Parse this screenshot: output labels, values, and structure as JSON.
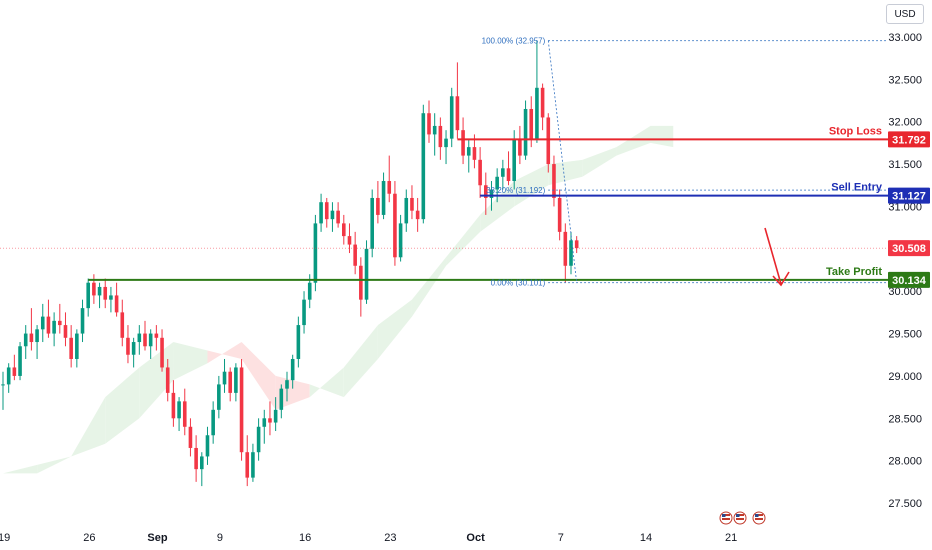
{
  "currency": "USD",
  "chart_data": {
    "type": "candlestick",
    "y_ticks": [
      "33.000",
      "32.500",
      "32.000",
      "31.500",
      "31.000",
      "30.500",
      "30.000",
      "29.500",
      "29.000",
      "28.500",
      "28.000",
      "27.500"
    ],
    "y_tick_values": [
      33.0,
      32.5,
      32.0,
      31.5,
      31.0,
      30.5,
      30.0,
      29.5,
      29.0,
      28.5,
      28.0,
      27.5
    ],
    "ylim": [
      27.3,
      33.2
    ],
    "x_ticks": [
      {
        "label": "19",
        "pos": 0.2,
        "bold": false
      },
      {
        "label": "26",
        "pos": 15.2,
        "bold": false
      },
      {
        "label": "Sep",
        "pos": 27.2,
        "bold": true
      },
      {
        "label": "9",
        "pos": 38.2,
        "bold": false
      },
      {
        "label": "16",
        "pos": 53.2,
        "bold": false
      },
      {
        "label": "23",
        "pos": 68.2,
        "bold": false
      },
      {
        "label": "Oct",
        "pos": 83.2,
        "bold": true
      },
      {
        "label": "7",
        "pos": 98.2,
        "bold": false
      },
      {
        "label": "14",
        "pos": 113.2,
        "bold": false
      },
      {
        "label": "21",
        "pos": 128.2,
        "bold": false
      }
    ],
    "candles": [
      [
        28.9,
        29.05,
        28.6,
        28.9
      ],
      [
        28.9,
        29.15,
        28.8,
        29.1
      ],
      [
        29.1,
        29.25,
        28.95,
        29.0
      ],
      [
        29.0,
        29.4,
        28.95,
        29.35
      ],
      [
        29.35,
        29.6,
        29.2,
        29.5
      ],
      [
        29.5,
        29.8,
        29.3,
        29.4
      ],
      [
        29.4,
        29.6,
        29.2,
        29.55
      ],
      [
        29.55,
        29.85,
        29.4,
        29.7
      ],
      [
        29.7,
        29.9,
        29.45,
        29.5
      ],
      [
        29.5,
        29.75,
        29.35,
        29.65
      ],
      [
        29.65,
        29.85,
        29.5,
        29.6
      ],
      [
        29.6,
        29.75,
        29.35,
        29.45
      ],
      [
        29.45,
        29.6,
        29.1,
        29.2
      ],
      [
        29.2,
        29.55,
        29.1,
        29.5
      ],
      [
        29.5,
        29.9,
        29.4,
        29.8
      ],
      [
        29.8,
        30.15,
        29.7,
        30.1
      ],
      [
        30.1,
        30.2,
        29.85,
        29.95
      ],
      [
        29.95,
        30.1,
        29.8,
        30.05
      ],
      [
        30.05,
        30.15,
        29.8,
        29.9
      ],
      [
        29.9,
        30.05,
        29.75,
        29.95
      ],
      [
        29.95,
        30.1,
        29.7,
        29.75
      ],
      [
        29.75,
        29.9,
        29.35,
        29.45
      ],
      [
        29.45,
        29.6,
        29.15,
        29.25
      ],
      [
        29.25,
        29.45,
        29.1,
        29.4
      ],
      [
        29.4,
        29.6,
        29.25,
        29.5
      ],
      [
        29.5,
        29.65,
        29.3,
        29.35
      ],
      [
        29.35,
        29.55,
        29.2,
        29.5
      ],
      [
        29.5,
        29.6,
        29.3,
        29.45
      ],
      [
        29.45,
        29.55,
        29.05,
        29.1
      ],
      [
        29.1,
        29.2,
        28.7,
        28.8
      ],
      [
        28.8,
        28.95,
        28.4,
        28.5
      ],
      [
        28.5,
        28.75,
        28.35,
        28.7
      ],
      [
        28.7,
        28.85,
        28.3,
        28.4
      ],
      [
        28.4,
        28.5,
        28.05,
        28.15
      ],
      [
        28.15,
        28.3,
        27.75,
        27.9
      ],
      [
        27.9,
        28.1,
        27.7,
        28.05
      ],
      [
        28.05,
        28.4,
        27.95,
        28.3
      ],
      [
        28.3,
        28.7,
        28.2,
        28.6
      ],
      [
        28.6,
        29.0,
        28.5,
        28.9
      ],
      [
        28.9,
        29.2,
        28.8,
        29.05
      ],
      [
        29.05,
        29.1,
        28.7,
        28.8
      ],
      [
        28.8,
        29.15,
        28.7,
        29.1
      ],
      [
        29.1,
        29.2,
        28.0,
        28.1
      ],
      [
        28.1,
        28.3,
        27.7,
        27.8
      ],
      [
        27.8,
        28.2,
        27.75,
        28.1
      ],
      [
        28.1,
        28.5,
        28.0,
        28.4
      ],
      [
        28.4,
        28.6,
        28.2,
        28.5
      ],
      [
        28.5,
        28.7,
        28.3,
        28.45
      ],
      [
        28.45,
        28.75,
        28.35,
        28.6
      ],
      [
        28.6,
        28.9,
        28.5,
        28.85
      ],
      [
        28.85,
        29.05,
        28.7,
        28.95
      ],
      [
        28.95,
        29.25,
        28.85,
        29.2
      ],
      [
        29.2,
        29.7,
        29.1,
        29.6
      ],
      [
        29.6,
        30.0,
        29.5,
        29.9
      ],
      [
        29.9,
        30.2,
        29.8,
        30.1
      ],
      [
        30.1,
        30.9,
        30.0,
        30.8
      ],
      [
        30.8,
        31.15,
        30.7,
        31.05
      ],
      [
        31.05,
        31.1,
        30.75,
        30.85
      ],
      [
        30.85,
        31.05,
        30.7,
        30.95
      ],
      [
        30.95,
        31.05,
        30.75,
        30.8
      ],
      [
        30.8,
        30.9,
        30.55,
        30.65
      ],
      [
        30.65,
        30.8,
        30.45,
        30.55
      ],
      [
        30.55,
        30.7,
        30.2,
        30.3
      ],
      [
        30.3,
        30.4,
        29.7,
        29.9
      ],
      [
        29.9,
        30.6,
        29.85,
        30.5
      ],
      [
        30.5,
        31.2,
        30.4,
        31.1
      ],
      [
        31.1,
        31.3,
        30.8,
        30.9
      ],
      [
        30.9,
        31.4,
        30.85,
        31.3
      ],
      [
        31.3,
        31.6,
        31.05,
        31.15
      ],
      [
        31.15,
        31.3,
        30.3,
        30.4
      ],
      [
        30.4,
        30.9,
        30.35,
        30.8
      ],
      [
        30.8,
        31.2,
        30.7,
        31.1
      ],
      [
        31.1,
        31.25,
        30.85,
        30.95
      ],
      [
        30.95,
        31.1,
        30.7,
        30.85
      ],
      [
        30.85,
        32.2,
        30.8,
        32.1
      ],
      [
        32.1,
        32.25,
        31.75,
        31.85
      ],
      [
        31.85,
        32.1,
        31.6,
        31.95
      ],
      [
        31.95,
        32.05,
        31.55,
        31.7
      ],
      [
        31.7,
        31.9,
        31.5,
        31.8
      ],
      [
        31.8,
        32.4,
        31.7,
        32.3
      ],
      [
        32.3,
        32.7,
        31.8,
        31.9
      ],
      [
        31.9,
        32.05,
        31.5,
        31.6
      ],
      [
        31.6,
        31.8,
        31.4,
        31.7
      ],
      [
        31.7,
        31.85,
        31.45,
        31.55
      ],
      [
        31.55,
        31.7,
        31.1,
        31.25
      ],
      [
        31.25,
        31.4,
        30.9,
        31.1
      ],
      [
        31.1,
        31.3,
        30.95,
        31.2
      ],
      [
        31.2,
        31.45,
        31.05,
        31.35
      ],
      [
        31.35,
        31.55,
        31.2,
        31.45
      ],
      [
        31.45,
        31.65,
        31.25,
        31.3
      ],
      [
        31.3,
        31.9,
        31.2,
        31.8
      ],
      [
        31.8,
        31.95,
        31.5,
        31.6
      ],
      [
        31.6,
        32.25,
        31.55,
        32.15
      ],
      [
        32.15,
        32.3,
        31.7,
        31.8
      ],
      [
        31.8,
        32.957,
        31.75,
        32.4
      ],
      [
        32.4,
        32.45,
        31.9,
        32.05
      ],
      [
        32.05,
        32.1,
        31.4,
        31.5
      ],
      [
        31.5,
        31.6,
        31.0,
        31.1
      ],
      [
        31.1,
        31.2,
        30.6,
        30.7
      ],
      [
        30.7,
        30.8,
        30.101,
        30.3
      ],
      [
        30.3,
        30.7,
        30.2,
        30.6
      ],
      [
        30.6,
        30.65,
        30.45,
        30.508
      ]
    ],
    "ichimoku_cloud": {
      "x": [
        0,
        6,
        12,
        18,
        24,
        30,
        36,
        42,
        48,
        54,
        60,
        66,
        72,
        78,
        84,
        90,
        96,
        102,
        108,
        114,
        118
      ],
      "span_a": [
        27.85,
        27.95,
        28.05,
        28.75,
        29.1,
        29.4,
        29.3,
        29.2,
        28.6,
        28.75,
        29.1,
        29.6,
        29.9,
        30.4,
        30.9,
        31.3,
        31.5,
        31.55,
        31.7,
        31.95,
        31.95
      ],
      "span_b": [
        27.85,
        27.85,
        28.05,
        28.2,
        28.5,
        28.95,
        29.15,
        29.4,
        29.0,
        28.9,
        28.75,
        29.2,
        29.7,
        30.3,
        30.7,
        31.0,
        31.25,
        31.35,
        31.6,
        31.75,
        31.7
      ]
    },
    "horizontal_lines": [
      {
        "label": "Stop Loss",
        "value": 31.792,
        "tag": "31.792",
        "color": "#e8262d",
        "from": 80
      },
      {
        "label": "Sell Entry",
        "value": 31.127,
        "tag": "31.127",
        "color": "#1e2fb5",
        "from": 84
      },
      {
        "label": "Take Profit",
        "value": 30.134,
        "tag": "30.134",
        "color": "#2d7a16",
        "from": 15
      }
    ],
    "current_price": {
      "value": 30.508,
      "tag": "30.508",
      "color": "#f23645"
    },
    "fibonacci": [
      {
        "label": "100.00% (32.957)",
        "value": 32.957
      },
      {
        "label": "38.20% (31.192)",
        "value": 31.192
      },
      {
        "label": "0.00% (30.101)",
        "value": 30.101
      }
    ],
    "fib_anchor_x": [
      96,
      101
    ],
    "arrow": {
      "color": "#e8262d"
    }
  },
  "colors": {
    "up": "#089981",
    "down": "#f23645",
    "cloud_green": "#e7f4e7",
    "cloud_red": "#fde1e1"
  }
}
